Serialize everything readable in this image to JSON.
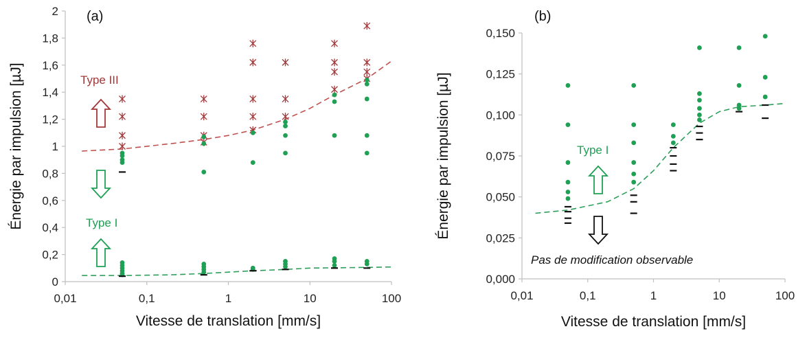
{
  "colors": {
    "type_iii": "#a0383a",
    "type_i": "#1fa055",
    "no_mod": "#111111",
    "fit_iii": "#c0504d",
    "fit_i": "#2e9e5b",
    "axis": "#bfbfbf"
  },
  "chart_data": [
    {
      "type": "scatter",
      "panel_label": "(a)",
      "xlabel": "Vitesse de translation [mm/s]",
      "ylabel": "Énergie par impulsion [µJ]",
      "xscale": "log",
      "xlim": [
        0.01,
        100
      ],
      "ylim": [
        0,
        2
      ],
      "x_ticks": [
        "0,01",
        "0,1",
        "1",
        "10",
        "100"
      ],
      "y_ticks": [
        "0",
        "0,2",
        "0,4",
        "0,6",
        "0,8",
        "1",
        "1,2",
        "1,4",
        "1,6",
        "1,8",
        "2"
      ],
      "grid": false,
      "annotations": [
        {
          "text": "Type III",
          "color": "type_iii",
          "arrow": "up"
        },
        {
          "text": "Type I",
          "color": "type_i",
          "arrows": [
            "down",
            "up"
          ]
        }
      ],
      "series": [
        {
          "marker": "star",
          "color": "type_iii",
          "points": [
            [
              0.05,
              1.35
            ],
            [
              0.05,
              1.22
            ],
            [
              0.05,
              1.08
            ],
            [
              0.05,
              1.0
            ],
            [
              0.5,
              1.35
            ],
            [
              0.5,
              1.22
            ],
            [
              0.5,
              1.08
            ],
            [
              0.5,
              1.03
            ],
            [
              2,
              1.76
            ],
            [
              2,
              1.62
            ],
            [
              2,
              1.35
            ],
            [
              2,
              1.22
            ],
            [
              2,
              1.12
            ],
            [
              5,
              1.62
            ],
            [
              5,
              1.35
            ],
            [
              5,
              1.22
            ],
            [
              20,
              1.76
            ],
            [
              20,
              1.62
            ],
            [
              20,
              1.55
            ],
            [
              20,
              1.42
            ],
            [
              50,
              1.89
            ],
            [
              50,
              1.62
            ],
            [
              50,
              1.55
            ],
            [
              50,
              1.5
            ]
          ]
        },
        {
          "marker": "dot",
          "color": "type_i",
          "points": [
            [
              0.05,
              0.95
            ],
            [
              0.05,
              0.93
            ],
            [
              0.05,
              0.9
            ],
            [
              0.05,
              0.88
            ],
            [
              0.05,
              0.14
            ],
            [
              0.05,
              0.12
            ],
            [
              0.05,
              0.1
            ],
            [
              0.05,
              0.08
            ],
            [
              0.05,
              0.06
            ],
            [
              0.05,
              0.05
            ],
            [
              0.5,
              1.07
            ],
            [
              0.5,
              1.02
            ],
            [
              0.5,
              0.81
            ],
            [
              0.5,
              0.13
            ],
            [
              0.5,
              0.11
            ],
            [
              0.5,
              0.09
            ],
            [
              0.5,
              0.07
            ],
            [
              2,
              1.1
            ],
            [
              2,
              0.88
            ],
            [
              2,
              0.1
            ],
            [
              2,
              0.09
            ],
            [
              5,
              1.18
            ],
            [
              5,
              1.15
            ],
            [
              5,
              1.08
            ],
            [
              5,
              0.95
            ],
            [
              5,
              0.15
            ],
            [
              5,
              0.13
            ],
            [
              5,
              0.11
            ],
            [
              20,
              1.38
            ],
            [
              20,
              1.33
            ],
            [
              20,
              1.08
            ],
            [
              20,
              0.17
            ],
            [
              20,
              0.15
            ],
            [
              20,
              0.12
            ],
            [
              50,
              1.49
            ],
            [
              50,
              1.46
            ],
            [
              50,
              1.35
            ],
            [
              50,
              1.08
            ],
            [
              50,
              0.95
            ],
            [
              50,
              0.15
            ],
            [
              50,
              0.13
            ]
          ]
        },
        {
          "marker": "dash",
          "color": "no_mod",
          "points": [
            [
              0.05,
              0.81
            ],
            [
              0.05,
              0.04
            ],
            [
              0.5,
              0.05
            ],
            [
              2,
              0.08
            ],
            [
              5,
              0.09
            ],
            [
              20,
              0.1
            ],
            [
              50,
              0.1
            ]
          ]
        }
      ],
      "fits": [
        {
          "color": "fit_iii",
          "points": [
            [
              0.016,
              0.965
            ],
            [
              0.05,
              0.98
            ],
            [
              0.2,
              1.02
            ],
            [
              0.5,
              1.05
            ],
            [
              1,
              1.08
            ],
            [
              2,
              1.12
            ],
            [
              5,
              1.2
            ],
            [
              10,
              1.28
            ],
            [
              20,
              1.38
            ],
            [
              50,
              1.5
            ],
            [
              100,
              1.63
            ]
          ]
        },
        {
          "color": "fit_i",
          "points": [
            [
              0.016,
              0.045
            ],
            [
              0.05,
              0.045
            ],
            [
              0.2,
              0.05
            ],
            [
              0.5,
              0.06
            ],
            [
              1,
              0.07
            ],
            [
              2,
              0.08
            ],
            [
              5,
              0.09
            ],
            [
              10,
              0.1
            ],
            [
              20,
              0.102
            ],
            [
              50,
              0.105
            ],
            [
              100,
              0.108
            ]
          ]
        }
      ]
    },
    {
      "type": "scatter",
      "panel_label": "(b)",
      "xlabel": "Vitesse de translation [mm/s]",
      "ylabel": "Énergie par impulsion [µJ]",
      "xscale": "log",
      "xlim": [
        0.01,
        100
      ],
      "ylim": [
        0,
        0.15
      ],
      "x_ticks": [
        "0,01",
        "0,1",
        "1",
        "10",
        "100"
      ],
      "y_ticks": [
        "0,000",
        "0,025",
        "0,050",
        "0,075",
        "0,100",
        "0,125",
        "0,150"
      ],
      "grid": false,
      "annotations": [
        {
          "text": "Type I",
          "color": "type_i",
          "arrow": "up"
        },
        {
          "text": "Pas de modification observable",
          "color": "no_mod",
          "arrow": "down"
        }
      ],
      "series": [
        {
          "marker": "dot",
          "color": "type_i",
          "points": [
            [
              0.05,
              0.118
            ],
            [
              0.05,
              0.094
            ],
            [
              0.05,
              0.071
            ],
            [
              0.05,
              0.059
            ],
            [
              0.05,
              0.053
            ],
            [
              0.05,
              0.049
            ],
            [
              0.5,
              0.118
            ],
            [
              0.5,
              0.094
            ],
            [
              0.5,
              0.083
            ],
            [
              0.5,
              0.071
            ],
            [
              0.5,
              0.064
            ],
            [
              0.5,
              0.059
            ],
            [
              2,
              0.094
            ],
            [
              2,
              0.087
            ],
            [
              2,
              0.083
            ],
            [
              5,
              0.141
            ],
            [
              5,
              0.113
            ],
            [
              5,
              0.109
            ],
            [
              5,
              0.104
            ],
            [
              5,
              0.1
            ],
            [
              5,
              0.097
            ],
            [
              20,
              0.141
            ],
            [
              20,
              0.118
            ],
            [
              20,
              0.106
            ],
            [
              20,
              0.104
            ],
            [
              50,
              0.148
            ],
            [
              50,
              0.123
            ],
            [
              50,
              0.111
            ]
          ]
        },
        {
          "marker": "dash",
          "color": "no_mod",
          "points": [
            [
              0.05,
              0.044
            ],
            [
              0.05,
              0.041
            ],
            [
              0.05,
              0.037
            ],
            [
              0.05,
              0.034
            ],
            [
              0.5,
              0.051
            ],
            [
              0.5,
              0.047
            ],
            [
              0.5,
              0.04
            ],
            [
              2,
              0.08
            ],
            [
              2,
              0.075
            ],
            [
              2,
              0.07
            ],
            [
              2,
              0.066
            ],
            [
              5,
              0.093
            ],
            [
              5,
              0.089
            ],
            [
              5,
              0.085
            ],
            [
              20,
              0.102
            ],
            [
              50,
              0.106
            ],
            [
              50,
              0.098
            ]
          ]
        }
      ],
      "fits": [
        {
          "color": "fit_i",
          "points": [
            [
              0.016,
              0.04
            ],
            [
              0.05,
              0.042
            ],
            [
              0.2,
              0.047
            ],
            [
              0.5,
              0.055
            ],
            [
              1,
              0.066
            ],
            [
              2,
              0.08
            ],
            [
              5,
              0.095
            ],
            [
              10,
              0.102
            ],
            [
              20,
              0.105
            ],
            [
              50,
              0.106
            ],
            [
              100,
              0.107
            ]
          ]
        }
      ]
    }
  ]
}
